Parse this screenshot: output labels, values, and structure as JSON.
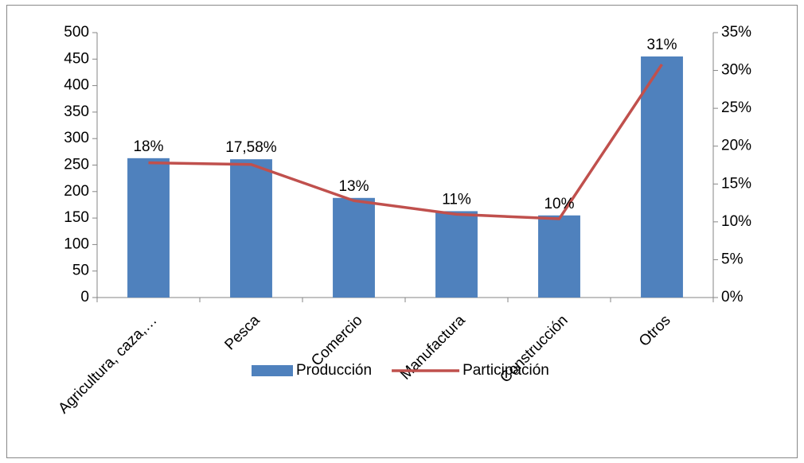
{
  "chart_data": {
    "type": "bar-line",
    "categories": [
      "Agricultura, caza,…",
      "Pesca",
      "Comercio",
      "Manufactura",
      "Construcción",
      "Otros"
    ],
    "series": [
      {
        "name": "Producción",
        "type": "bar",
        "color": "#4f81bd",
        "values": [
          263,
          261,
          188,
          163,
          155,
          455
        ]
      },
      {
        "name": "Participación",
        "type": "line",
        "axis": "y2",
        "color": "#c0504d",
        "values": [
          17.8,
          17.58,
          12.8,
          11.0,
          10.4,
          30.8
        ],
        "value_labels": [
          "18%",
          "17,58%",
          "13%",
          "11%",
          "10%",
          "31%"
        ]
      }
    ],
    "ylim": [
      0,
      500
    ],
    "yticks": [
      0,
      50,
      100,
      150,
      200,
      250,
      300,
      350,
      400,
      450,
      500
    ],
    "y2lim": [
      0,
      35
    ],
    "y2ticks": [
      {
        "value": 0,
        "label": "0%"
      },
      {
        "value": 5,
        "label": "5%"
      },
      {
        "value": 10,
        "label": "10%"
      },
      {
        "value": 15,
        "label": "15%"
      },
      {
        "value": 20,
        "label": "20%"
      },
      {
        "value": 25,
        "label": "25%"
      },
      {
        "value": 30,
        "label": "30%"
      },
      {
        "value": 35,
        "label": "35%"
      }
    ],
    "legend": "bottom"
  }
}
